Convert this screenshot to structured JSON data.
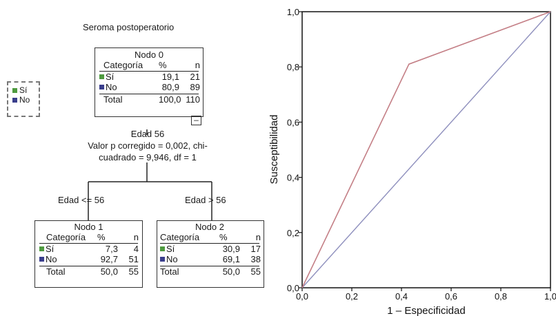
{
  "tree": {
    "title": "Seroma postoperatorio",
    "legend": [
      {
        "label": "Sí",
        "color": "#4e9a3f"
      },
      {
        "label": "No",
        "color": "#3a3e8c"
      }
    ],
    "root": {
      "title": "Nodo 0",
      "col_category": "Categoría",
      "col_pct": "%",
      "col_n": "n",
      "rows": [
        {
          "label": "Sí",
          "pct": "19,1",
          "n": "21"
        },
        {
          "label": "No",
          "pct": "80,9",
          "n": "89"
        }
      ],
      "total_label": "Total",
      "total_pct": "100,0",
      "total_n": "110",
      "collapse_symbol": "–"
    },
    "split": {
      "variable": "Edad 56",
      "line1": "Valor p corregido = 0,002, chi-",
      "line2": "cuadrado = 9,946, df = 1"
    },
    "edges": {
      "left": "Edad <= 56",
      "right": "Edad > 56"
    },
    "children": [
      {
        "title": "Nodo 1",
        "col_category": "Categoría",
        "col_pct": "%",
        "col_n": "n",
        "rows": [
          {
            "label": "Sí",
            "pct": "7,3",
            "n": "4"
          },
          {
            "label": "No",
            "pct": "92,7",
            "n": "51"
          }
        ],
        "total_label": "Total",
        "total_pct": "50,0",
        "total_n": "55"
      },
      {
        "title": "Nodo 2",
        "col_category": "Categoría",
        "col_pct": "%",
        "col_n": "n",
        "rows": [
          {
            "label": "Sí",
            "pct": "30,9",
            "n": "17"
          },
          {
            "label": "No",
            "pct": "69,1",
            "n": "38"
          }
        ],
        "total_label": "Total",
        "total_pct": "50,0",
        "total_n": "55"
      }
    ]
  },
  "roc": {
    "xlabel": "1 – Especificidad",
    "ylabel": "Susceptibilidad",
    "x_ticks": [
      "0,0",
      "0,2",
      "0,4",
      "0,6",
      "0,8",
      "1,0"
    ],
    "y_ticks": [
      "0,0",
      "0,2",
      "0,4",
      "0,6",
      "0,8",
      "1,0"
    ],
    "curve_color": "#c47f86",
    "reference_color": "#8e8fbd",
    "curve_points": [
      [
        0,
        0
      ],
      [
        0.43,
        0.81
      ],
      [
        1,
        1
      ]
    ],
    "reference_points": [
      [
        0,
        0
      ],
      [
        1,
        1
      ]
    ]
  }
}
